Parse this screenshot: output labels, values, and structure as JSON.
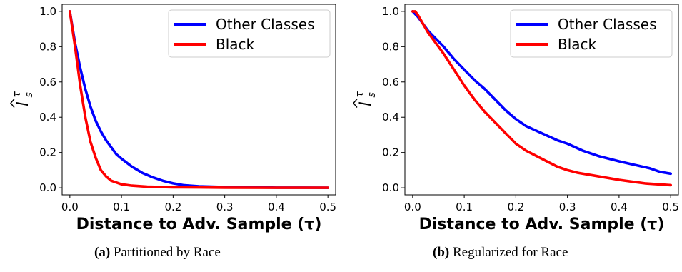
{
  "chart_data": [
    {
      "type": "line",
      "panel": "a",
      "xlabel": "Distance to Adv. Sample (τ)",
      "ylabel_base": "I",
      "ylabel_sup": "τ",
      "ylabel_sub": "s",
      "xlim": [
        -0.015,
        0.515
      ],
      "ylim": [
        -0.04,
        1.04
      ],
      "xticks": [
        0.0,
        0.1,
        0.2,
        0.3,
        0.4,
        0.5
      ],
      "xtick_labels": [
        "0.0",
        "0.1",
        "0.2",
        "0.3",
        "0.4",
        "0.5"
      ],
      "yticks": [
        0.0,
        0.2,
        0.4,
        0.6,
        0.8,
        1.0
      ],
      "ytick_labels": [
        "0.0",
        "0.2",
        "0.4",
        "0.6",
        "0.8",
        "1.0"
      ],
      "grid": false,
      "legend": "top-right",
      "series": [
        {
          "name": "Other Classes",
          "color": "#0000ff",
          "x": [
            0.0,
            0.01,
            0.02,
            0.03,
            0.04,
            0.05,
            0.06,
            0.07,
            0.08,
            0.09,
            0.1,
            0.12,
            0.14,
            0.16,
            0.18,
            0.2,
            0.22,
            0.25,
            0.3,
            0.35,
            0.4,
            0.45,
            0.5
          ],
          "y": [
            1.0,
            0.82,
            0.68,
            0.56,
            0.46,
            0.38,
            0.32,
            0.27,
            0.23,
            0.19,
            0.165,
            0.12,
            0.085,
            0.06,
            0.04,
            0.025,
            0.015,
            0.008,
            0.004,
            0.002,
            0.001,
            0.001,
            0.0
          ]
        },
        {
          "name": "Black",
          "color": "#ff0000",
          "x": [
            0.0,
            0.01,
            0.02,
            0.03,
            0.04,
            0.05,
            0.06,
            0.07,
            0.08,
            0.09,
            0.1,
            0.12,
            0.15,
            0.2,
            0.25,
            0.3,
            0.4,
            0.5
          ],
          "y": [
            1.0,
            0.8,
            0.58,
            0.4,
            0.26,
            0.17,
            0.1,
            0.065,
            0.04,
            0.03,
            0.02,
            0.012,
            0.006,
            0.003,
            0.002,
            0.001,
            0.0,
            0.0
          ]
        }
      ]
    },
    {
      "type": "line",
      "panel": "b",
      "xlabel": "Distance to Adv. Sample (τ)",
      "ylabel_base": "I",
      "ylabel_sup": "τ",
      "ylabel_sub": "s",
      "xlim": [
        -0.015,
        0.515
      ],
      "ylim": [
        -0.04,
        1.04
      ],
      "xticks": [
        0.0,
        0.1,
        0.2,
        0.3,
        0.4,
        0.5
      ],
      "xtick_labels": [
        "0.0",
        "0.1",
        "0.2",
        "0.3",
        "0.4",
        "0.5"
      ],
      "yticks": [
        0.0,
        0.2,
        0.4,
        0.6,
        0.8,
        1.0
      ],
      "ytick_labels": [
        "0.0",
        "0.2",
        "0.4",
        "0.6",
        "0.8",
        "1.0"
      ],
      "grid": false,
      "legend": "top-right",
      "series": [
        {
          "name": "Other Classes",
          "color": "#0000ff",
          "x": [
            0.0,
            0.01,
            0.02,
            0.03,
            0.04,
            0.05,
            0.06,
            0.08,
            0.1,
            0.12,
            0.14,
            0.16,
            0.18,
            0.2,
            0.22,
            0.25,
            0.28,
            0.3,
            0.33,
            0.36,
            0.4,
            0.43,
            0.46,
            0.48,
            0.5
          ],
          "y": [
            1.0,
            0.97,
            0.93,
            0.89,
            0.86,
            0.83,
            0.8,
            0.73,
            0.67,
            0.61,
            0.56,
            0.5,
            0.44,
            0.39,
            0.35,
            0.31,
            0.27,
            0.25,
            0.21,
            0.18,
            0.15,
            0.13,
            0.11,
            0.09,
            0.08
          ]
        },
        {
          "name": "Black",
          "color": "#ff0000",
          "x": [
            0.0,
            0.005,
            0.01,
            0.02,
            0.03,
            0.04,
            0.05,
            0.06,
            0.08,
            0.1,
            0.12,
            0.14,
            0.16,
            0.18,
            0.2,
            0.22,
            0.24,
            0.26,
            0.28,
            0.3,
            0.32,
            0.35,
            0.4,
            0.45,
            0.5
          ],
          "y": [
            1.0,
            1.0,
            0.98,
            0.93,
            0.88,
            0.84,
            0.8,
            0.76,
            0.67,
            0.58,
            0.5,
            0.43,
            0.37,
            0.31,
            0.25,
            0.21,
            0.18,
            0.15,
            0.12,
            0.1,
            0.085,
            0.07,
            0.045,
            0.025,
            0.015
          ]
        }
      ]
    }
  ],
  "captions": [
    {
      "label": "(a)",
      "text": " Partitioned by Race"
    },
    {
      "label": "(b)",
      "text": " Regularized for Race"
    }
  ]
}
